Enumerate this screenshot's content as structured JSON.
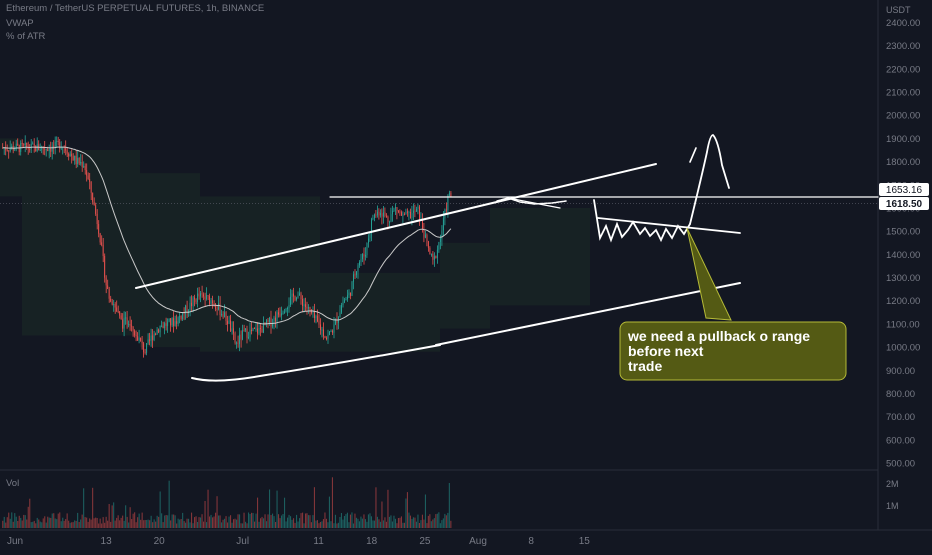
{
  "legend": {
    "symbol_line": "Ethereum / TetherUS PERPETUAL FUTURES, 1h, BINANCE",
    "indicator_1": "VWAP",
    "indicator_2": "% of ATR"
  },
  "volume_pane": {
    "label": "Vol",
    "ticks": [
      "2M",
      "1M"
    ]
  },
  "price_axis": {
    "unit_label": "USDT"
  },
  "price_badges": {
    "upper": "1653.16",
    "lower": "1618.50"
  },
  "annotation": {
    "lines": [
      "we need a pullback o range",
      "before next",
      "trade"
    ]
  },
  "colors": {
    "background": "#131722",
    "up": "#26a69a",
    "down": "#ef5350",
    "drawing": "#ffffff",
    "callout_fill": "#545a14",
    "callout_border": "#b5ba37",
    "badge_fill": "#ffffff",
    "badge_text": "#131722",
    "cloud": "#1b2b27"
  },
  "chart_data": {
    "type": "candlestick",
    "title": "Ethereum / TetherUS PERPETUAL FUTURES, 1h, BINANCE",
    "ylabel": "USDT",
    "ylim": [
      480,
      2450
    ],
    "y_ticks": [
      2400,
      2300,
      2200,
      2100,
      2000,
      1900,
      1800,
      1700,
      1600,
      1500,
      1400,
      1300,
      1200,
      1100,
      1000,
      900,
      800,
      700,
      600,
      500
    ],
    "x_ticks": [
      "Jun",
      "13",
      "20",
      "Jul",
      "11",
      "18",
      "25",
      "Aug",
      "8",
      "15"
    ],
    "grid": false,
    "legend": "top-left",
    "series": [
      {
        "name": "price_path",
        "points": [
          [
            "Jun 6",
            1860
          ],
          [
            "Jun 7",
            1880
          ],
          [
            "Jun 9",
            1800
          ],
          [
            "Jun 10",
            1790
          ],
          [
            "Jun 11",
            1660
          ],
          [
            "Jun 12",
            1500
          ],
          [
            "Jun 13",
            1250
          ],
          [
            "Jun 14",
            1180
          ],
          [
            "Jun 15",
            1100
          ],
          [
            "Jun 16",
            1120
          ],
          [
            "Jun 18",
            980
          ],
          [
            "Jun 19",
            1050
          ],
          [
            "Jun 20",
            1090
          ],
          [
            "Jun 22",
            1110
          ],
          [
            "Jun 24",
            1180
          ],
          [
            "Jun 25",
            1220
          ],
          [
            "Jun 27",
            1200
          ],
          [
            "Jun 29",
            1110
          ],
          [
            "Jun 30",
            1010
          ],
          [
            "Jul 1",
            1060
          ],
          [
            "Jul 3",
            1070
          ],
          [
            "Jul 5",
            1120
          ],
          [
            "Jul 6",
            1160
          ],
          [
            "Jul 8",
            1230
          ],
          [
            "Jul 10",
            1140
          ],
          [
            "Jul 12",
            1040
          ],
          [
            "Jul 13",
            1090
          ],
          [
            "Jul 14",
            1190
          ],
          [
            "Jul 15",
            1230
          ],
          [
            "Jul 16",
            1360
          ],
          [
            "Jul 17",
            1400
          ],
          [
            "Jul 18",
            1560
          ],
          [
            "Jul 19",
            1590
          ],
          [
            "Jul 20",
            1550
          ],
          [
            "Jul 21",
            1600
          ],
          [
            "Jul 22",
            1560
          ],
          [
            "Jul 23",
            1570
          ],
          [
            "Jul 24",
            1590
          ],
          [
            "Jul 25",
            1460
          ],
          [
            "Jul 26",
            1360
          ],
          [
            "Jul 27",
            1480
          ],
          [
            "Jul 28",
            1653
          ]
        ]
      }
    ],
    "current_price": 1618.5,
    "level_price": 1653.16,
    "volume": {
      "ylim": [
        0,
        2400000
      ],
      "ticks": [
        2000000,
        1000000
      ]
    },
    "annotations": [
      "we need a pullback o range before next trade"
    ]
  }
}
